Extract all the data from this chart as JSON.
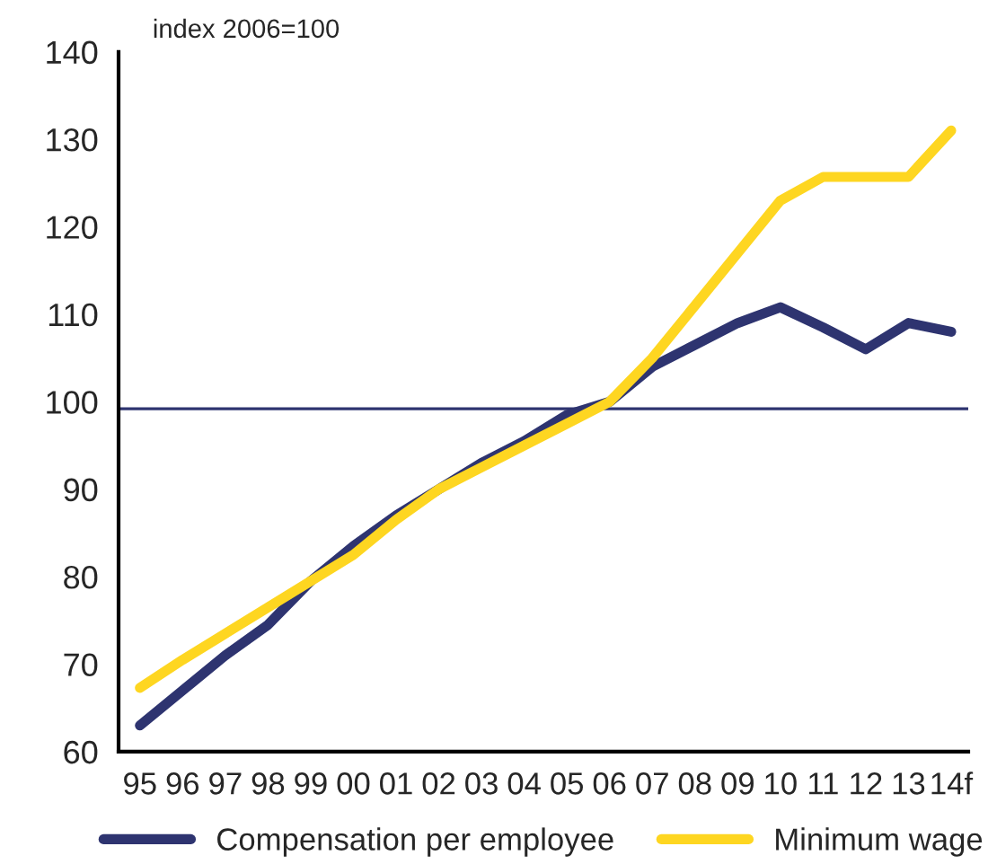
{
  "chart_data": {
    "type": "line",
    "categories": [
      "95",
      "96",
      "97",
      "98",
      "99",
      "00",
      "01",
      "02",
      "03",
      "04",
      "05",
      "06",
      "07",
      "08",
      "09",
      "10",
      "11",
      "12",
      "13",
      "14f"
    ],
    "series": [
      {
        "name": "Compensation per employee",
        "color": "#2e3470",
        "values": [
          63,
          67,
          71,
          74.5,
          79.5,
          83.5,
          87,
          90,
          93,
          95.5,
          98.5,
          100,
          104,
          106.5,
          109,
          110.8,
          108.5,
          106,
          109,
          108
        ]
      },
      {
        "name": "Minimum wage",
        "color": "#fed621",
        "values": [
          67.3,
          70.5,
          73.5,
          76.5,
          79.5,
          82.5,
          86.5,
          90,
          92.5,
          95,
          97.5,
          100,
          105,
          111,
          117,
          123,
          125.7,
          125.7,
          125.7,
          131
        ]
      }
    ],
    "ylim": [
      60,
      140
    ],
    "yticks": [
      60,
      70,
      80,
      90,
      100,
      110,
      120,
      130,
      140
    ],
    "ref_lines": [
      {
        "axis": "y",
        "value": 99.2,
        "color": "#2e3470"
      }
    ],
    "annotations": [
      "index 2006=100"
    ],
    "grid": false,
    "legend": "bottom",
    "line_style": "solid"
  }
}
